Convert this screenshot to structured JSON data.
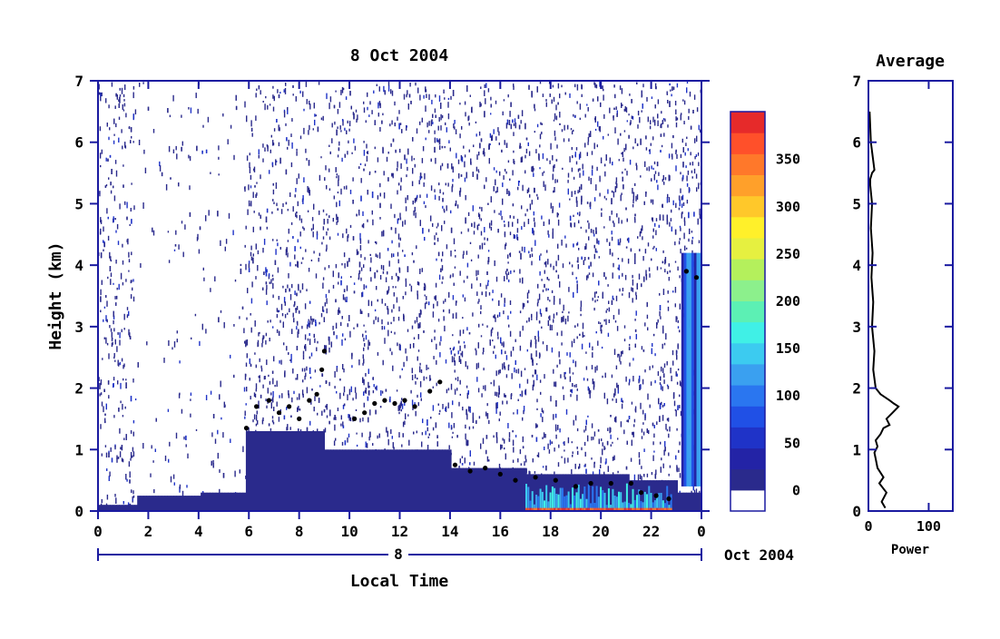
{
  "chart_data": [
    {
      "type": "heatmap",
      "title": "8 Oct 2004",
      "xlabel": "Local Time",
      "ylabel": "Height (km)",
      "xlim": [
        0,
        24
      ],
      "ylim": [
        0,
        7
      ],
      "x_ticks": [
        "0",
        "2",
        "4",
        "6",
        "8",
        "10",
        "12",
        "14",
        "16",
        "18",
        "20",
        "22",
        "0"
      ],
      "y_ticks": [
        "0",
        "1",
        "2",
        "3",
        "4",
        "5",
        "6",
        "7"
      ],
      "date_bar": {
        "day": "8",
        "month_year": "Oct 2004"
      },
      "colorbar": {
        "ticks": [
          "0",
          "50",
          "100",
          "150",
          "200",
          "250",
          "300",
          "350"
        ],
        "range": [
          0,
          380
        ],
        "colors": [
          "#ffffff",
          "#2a2a8c",
          "#2323a6",
          "#1f33c8",
          "#2050e6",
          "#2a76f0",
          "#3aa0f0",
          "#3ccbf0",
          "#40f0e6",
          "#5cf0b4",
          "#8cf08c",
          "#b4f05c",
          "#e6f040",
          "#fff02a",
          "#ffc82a",
          "#ffa02a",
          "#ff782a",
          "#ff502a",
          "#e62a2a"
        ]
      },
      "cloud_base": [
        [
          5.9,
          1.35
        ],
        [
          6.3,
          1.7
        ],
        [
          6.8,
          1.8
        ],
        [
          7.2,
          1.6
        ],
        [
          7.6,
          1.7
        ],
        [
          8.0,
          1.5
        ],
        [
          8.4,
          1.8
        ],
        [
          8.7,
          1.9
        ],
        [
          8.9,
          2.3
        ],
        [
          9.0,
          2.6
        ],
        [
          10.2,
          1.5
        ],
        [
          10.6,
          1.6
        ],
        [
          11.0,
          1.75
        ],
        [
          11.4,
          1.8
        ],
        [
          11.8,
          1.75
        ],
        [
          12.2,
          1.8
        ],
        [
          12.6,
          1.7
        ],
        [
          13.2,
          1.95
        ],
        [
          13.6,
          2.1
        ],
        [
          14.2,
          0.75
        ],
        [
          14.8,
          0.65
        ],
        [
          15.4,
          0.7
        ],
        [
          16.0,
          0.6
        ],
        [
          16.6,
          0.5
        ],
        [
          17.4,
          0.55
        ],
        [
          18.2,
          0.5
        ],
        [
          19.0,
          0.4
        ],
        [
          19.6,
          0.45
        ],
        [
          20.4,
          0.45
        ],
        [
          21.2,
          0.45
        ],
        [
          21.6,
          0.3
        ],
        [
          22.2,
          0.25
        ],
        [
          22.7,
          0.2
        ],
        [
          23.4,
          3.9
        ],
        [
          23.8,
          3.8
        ]
      ]
    },
    {
      "type": "line",
      "title": "Average",
      "xlabel": "Power",
      "ylabel": "",
      "xlim": [
        0,
        140
      ],
      "ylim": [
        0,
        7
      ],
      "x_ticks": [
        "0",
        "100"
      ],
      "y_ticks": [
        "0",
        "1",
        "2",
        "3",
        "4",
        "5",
        "6",
        "7"
      ],
      "series": [
        {
          "x": [
            28,
            22,
            30,
            18,
            25,
            15,
            12,
            10,
            15,
            12,
            20,
            25,
            35,
            30,
            40,
            45,
            50,
            42,
            35,
            20,
            12,
            8,
            10,
            6,
            8,
            5,
            7,
            4,
            6,
            3,
            3,
            6,
            10,
            4,
            2
          ],
          "y": [
            0.05,
            0.15,
            0.3,
            0.45,
            0.55,
            0.7,
            0.85,
            0.95,
            1.05,
            1.15,
            1.25,
            1.35,
            1.4,
            1.5,
            1.6,
            1.65,
            1.7,
            1.75,
            1.8,
            1.9,
            2.0,
            2.3,
            2.6,
            3.0,
            3.4,
            3.8,
            4.2,
            4.6,
            5.0,
            5.3,
            5.4,
            5.5,
            5.55,
            6.0,
            6.5
          ]
        }
      ]
    }
  ]
}
